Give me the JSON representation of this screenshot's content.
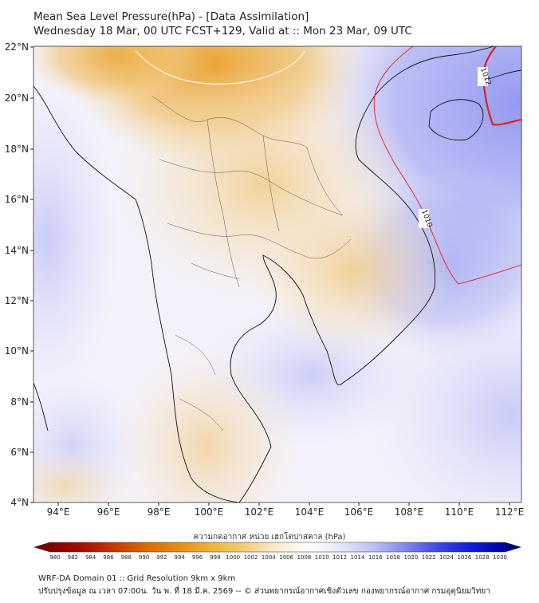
{
  "title": "Mean Sea Level Pressure(hPa) - [Data Assimilation]",
  "subtitle": "Wednesday 18 Mar, 00 UTC FCST+129, Valid at :: Mon 23 Mar, 09 UTC",
  "map": {
    "lat_range": [
      4,
      22
    ],
    "lon_range": [
      93,
      112.5
    ],
    "lat_labels": [
      "22°N",
      "20°N",
      "18°N",
      "16°N",
      "14°N",
      "12°N",
      "10°N",
      "8°N",
      "6°N",
      "4°N"
    ],
    "lon_labels": [
      "94°E",
      "96°E",
      "98°E",
      "100°E",
      "102°E",
      "104°E",
      "106°E",
      "108°E",
      "110°E",
      "112°E"
    ],
    "isobar_labels": [
      "1012",
      "1010"
    ],
    "colors": {
      "high_pressure": "#e9a93a",
      "low_pressure": "#a8abf2",
      "isobar": "#e03030",
      "coastline": "#111111"
    }
  },
  "colorbar": {
    "title": "ความกดอากาศ หน่วย เฮกโตปาสคาล (hPa)",
    "ticks": [
      "980",
      "982",
      "984",
      "986",
      "988",
      "990",
      "992",
      "994",
      "996",
      "998",
      "1000",
      "1002",
      "1004",
      "1006",
      "1008",
      "1010",
      "1012",
      "1014",
      "1016",
      "1018",
      "1020",
      "1022",
      "1024",
      "1026",
      "1028",
      "1030"
    ],
    "colors": [
      "#7d0000",
      "#a80c00",
      "#c83a00",
      "#db6a00",
      "#e88f12",
      "#f0b23a",
      "#f5cd78",
      "#faebcf",
      "#ffffff",
      "#e2e4fa",
      "#b8bcf4",
      "#7b82ef",
      "#3a42e6",
      "#0d1ad8",
      "#00009c"
    ]
  },
  "footer": {
    "line1": "WRF-DA Domain 01 :: Grid Resolution 9km x 9km",
    "line2": "ปรับปรุงข้อมูล ณ เวลา 07:00น. วัน พ. ที่ 18 มี.ค. 2569 -- © ส่วนพยากรณ์อากาศเชิงตัวเลข กองพยากรณ์อากาศ กรมอุตุนิยมวิทยา"
  }
}
